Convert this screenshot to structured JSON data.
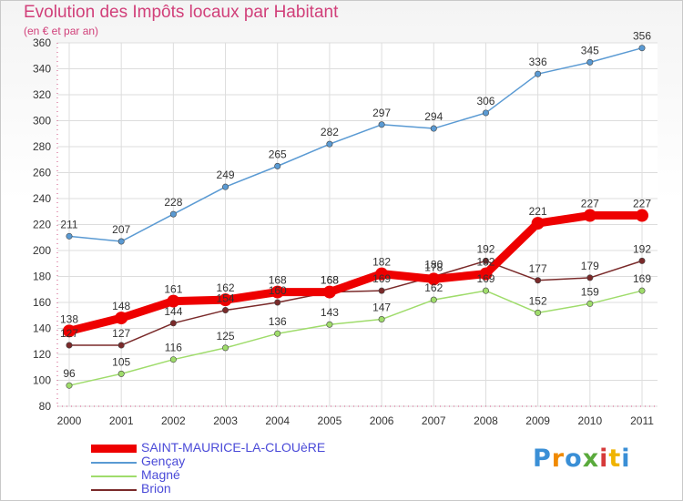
{
  "title": "Evolution des Impôts locaux par Habitant",
  "subtitle": "(en € et par an)",
  "logo": {
    "letters": [
      "P",
      "r",
      "o",
      "x",
      "i",
      "t",
      "i"
    ],
    "colors": [
      "#3a8fd6",
      "#f08a00",
      "#3a8fd6",
      "#5aaa3c",
      "#d63a3a",
      "#f0b400",
      "#3a8fd6"
    ]
  },
  "chart_data": {
    "type": "line",
    "title": "Evolution des Impôts locaux par Habitant",
    "subtitle": "(en € et par an)",
    "x": [
      "2000",
      "2001",
      "2002",
      "2003",
      "2004",
      "2005",
      "2006",
      "2007",
      "2008",
      "2009",
      "2010",
      "2011"
    ],
    "ylim": [
      80,
      360
    ],
    "yticks": [
      80,
      100,
      120,
      140,
      160,
      180,
      200,
      220,
      240,
      260,
      280,
      300,
      320,
      340,
      360
    ],
    "grid": true,
    "legend_position": "bottom-left",
    "series": [
      {
        "name": "SAINT-MAURICE-LA-CLOUèRE",
        "color": "#ee0000",
        "values": [
          138,
          148,
          161,
          162,
          168,
          168,
          182,
          178,
          182,
          221,
          227,
          227
        ],
        "labels": [
          "138",
          "148",
          "161",
          "162",
          "168",
          "168",
          "182",
          "178",
          "182",
          "221",
          "227",
          "227"
        ]
      },
      {
        "name": "Gençay",
        "color": "#5a9ad3",
        "values": [
          211,
          207,
          228,
          249,
          265,
          282,
          297,
          294,
          306,
          336,
          345,
          356
        ],
        "labels": [
          "211",
          "207",
          "228",
          "249",
          "265",
          "282",
          "297",
          "294",
          "306",
          "336",
          "345",
          "356"
        ]
      },
      {
        "name": "Magné",
        "color": "#9fdc6b",
        "values": [
          96,
          105,
          116,
          125,
          136,
          143,
          147,
          162,
          169,
          152,
          159,
          169
        ],
        "labels": [
          "96",
          "105",
          "116",
          "125",
          "136",
          "143",
          "147",
          "162",
          "169",
          "152",
          "159",
          "169"
        ]
      },
      {
        "name": "Brion",
        "color": "#7a2a2a",
        "values": [
          127,
          127,
          144,
          154,
          160,
          168,
          169,
          180,
          192,
          177,
          179,
          192
        ],
        "labels": [
          "127",
          "127",
          "144",
          "154",
          "160",
          "168",
          "169",
          "180",
          "192",
          "177",
          "179",
          "192"
        ]
      }
    ]
  }
}
